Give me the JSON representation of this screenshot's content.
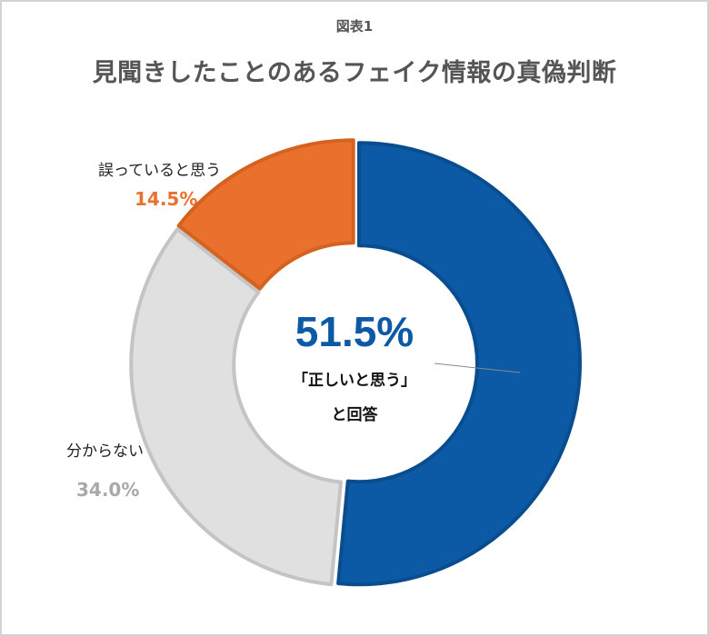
{
  "figure_label": "図表1",
  "chart_data": {
    "type": "donut",
    "title": "見聞きしたことのあるフェイク情報の真偽判断",
    "slices": [
      {
        "label": "「正しいと思う」",
        "value": 51.5,
        "value_text": "51.5%",
        "color": "#0c5aa6",
        "stroke": "#0a4d8f"
      },
      {
        "label": "分からない",
        "value": 34.0,
        "value_text": "34.0%",
        "color": "#e0e0e0",
        "stroke": "#c4c4c4"
      },
      {
        "label": "誤っていると思う",
        "value": 14.5,
        "value_text": "14.5%",
        "color": "#ea702e",
        "stroke": "#d4631f"
      }
    ],
    "center_text": {
      "value": "51.5%",
      "line1": "「正しいと思う」",
      "line2": "と回答"
    },
    "value_colors": {
      "誤っていると思う": "#ea702e",
      "分からない": "#a9a9a9"
    }
  }
}
